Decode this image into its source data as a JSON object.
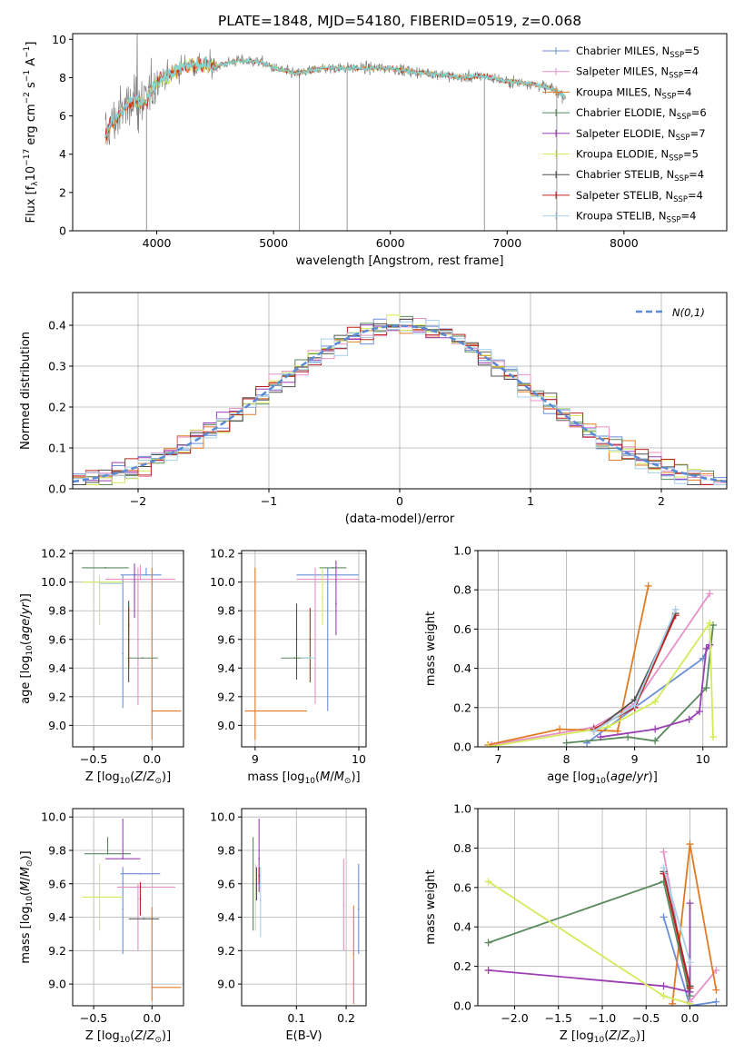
{
  "figure": {
    "title": "PLATE=1848, MJD=54180, FIBERID=0519, z=0.068"
  },
  "models": [
    {
      "name": "Chabrier MILES, N",
      "nssp": "=5",
      "color": "#6a8fd8"
    },
    {
      "name": "Salpeter MILES, N",
      "nssp": "=4",
      "color": "#e890c8"
    },
    {
      "name": "Kroupa MILES, N",
      "nssp": "=4",
      "color": "#e07b24"
    },
    {
      "name": "Chabrier ELODIE, N",
      "nssp": "=6",
      "color": "#5a8a5e"
    },
    {
      "name": "Salpeter ELODIE, N",
      "nssp": "=7",
      "color": "#9b3fb5"
    },
    {
      "name": "Kroupa ELODIE, N",
      "nssp": "=5",
      "color": "#d4ea5a"
    },
    {
      "name": "Chabrier STELIB, N",
      "nssp": "=4",
      "color": "#505050"
    },
    {
      "name": "Salpeter STELIB, N",
      "nssp": "=4",
      "color": "#c0231e"
    },
    {
      "name": "Kroupa STELIB, N",
      "nssp": "=4",
      "color": "#a8d0e8"
    }
  ],
  "chart_data": [
    {
      "id": "spectrum",
      "type": "line",
      "title": "PLATE=1848, MJD=54180, FIBERID=0519, z=0.068",
      "xlabel": "wavelength [Angstrom, rest frame]",
      "ylabel": "Flux [f_λ 10^-17 erg cm^-2 s^-1 A^-1]",
      "xlim": [
        3280,
        8880
      ],
      "ylim": [
        0,
        10.3
      ],
      "xticks": [
        4000,
        5000,
        6000,
        7000,
        8000
      ],
      "yticks": [
        0,
        2,
        4,
        6,
        8,
        10
      ],
      "data_color": "#7f7f7f",
      "model_color": "#7fdde0",
      "continuum": {
        "x": [
          3560,
          3600,
          3700,
          3800,
          3900,
          3950,
          4000,
          4100,
          4200,
          4300,
          4400,
          4500,
          4700,
          4900,
          5000,
          5200,
          5400,
          5600,
          5800,
          6000,
          6200,
          6400,
          6600,
          6800,
          7000,
          7200,
          7400,
          7500
        ],
        "y": [
          4.9,
          5.5,
          6.2,
          6.9,
          6.6,
          7.3,
          7.8,
          8.1,
          8.5,
          8.7,
          8.6,
          8.6,
          8.9,
          8.8,
          8.5,
          8.2,
          8.5,
          8.5,
          8.5,
          8.5,
          8.3,
          8.2,
          8.0,
          8.1,
          7.8,
          7.7,
          7.4,
          7.0
        ]
      },
      "spikes": [
        {
          "x": 3912,
          "y": 0
        },
        {
          "x": 5222,
          "y": 0
        },
        {
          "x": 5630,
          "y": 0
        },
        {
          "x": 6805,
          "y": 0
        },
        {
          "x": 7425,
          "y": 0
        }
      ]
    },
    {
      "id": "residuals",
      "type": "line",
      "xlabel": "(data-model)/error",
      "ylabel": "Normed distribution",
      "xlim": [
        -2.5,
        2.5
      ],
      "ylim": [
        0,
        0.48
      ],
      "xticks": [
        -2,
        -1,
        0,
        1,
        2
      ],
      "yticks": [
        0.0,
        0.1,
        0.2,
        0.3,
        0.4
      ],
      "gaussian_label": "N(0,1)",
      "gaussian_color": "#5b8ad6",
      "bin_width": 0.1,
      "bins_start": -2.5
    },
    {
      "id": "age_vs_Z",
      "type": "scatter",
      "xlabel": "Z [log10(Z/Z⊙)]",
      "ylabel": "age [log10(age/yr)]",
      "xlim": [
        -0.68,
        0.27
      ],
      "ylim": [
        8.85,
        10.22
      ],
      "xticks": [
        -0.5,
        0.0
      ],
      "yticks": [
        9.0,
        9.2,
        9.4,
        9.6,
        9.8,
        10.0,
        10.2
      ],
      "points": [
        {
          "model": 0,
          "x": -0.05,
          "y": 10.05,
          "xerr": [
            0.22,
            0.13
          ],
          "yerr": [
            0.0,
            0.05
          ]
        },
        {
          "model": 0,
          "x": -0.25,
          "y": 9.5,
          "xerr": [
            0.0,
            0.0
          ],
          "yerr": [
            0.38,
            0.55
          ]
        },
        {
          "model": 1,
          "x": -0.1,
          "y": 10.02,
          "xerr": [
            0.3,
            0.3
          ],
          "yerr": [
            0.0,
            0.1
          ]
        },
        {
          "model": 1,
          "x": -0.12,
          "y": 9.6,
          "xerr": [
            0.0,
            0.0
          ],
          "yerr": [
            0.46,
            0.5
          ]
        },
        {
          "model": 2,
          "x": 0.0,
          "y": 9.1,
          "xerr": [
            0.0,
            0.25
          ],
          "yerr": [
            0.2,
            1.0
          ]
        },
        {
          "model": 3,
          "x": -0.4,
          "y": 10.1,
          "xerr": [
            0.2,
            0.2
          ],
          "yerr": [
            0.0,
            0.0
          ]
        },
        {
          "model": 3,
          "x": -0.08,
          "y": 9.47,
          "xerr": [
            0.13,
            0.13
          ],
          "yerr": [
            0.0,
            0.0
          ]
        },
        {
          "model": 4,
          "x": -0.15,
          "y": 10.05,
          "xerr": [
            0.0,
            0.0
          ],
          "yerr": [
            0.3,
            0.08
          ]
        },
        {
          "model": 5,
          "x": -0.45,
          "y": 10.0,
          "xerr": [
            0.15,
            0.2
          ],
          "yerr": [
            0.3,
            0.05
          ]
        },
        {
          "model": 6,
          "x": -0.2,
          "y": 9.6,
          "xerr": [
            0.0,
            0.0
          ],
          "yerr": [
            0.3,
            0.27
          ]
        },
        {
          "model": 7,
          "x": -0.2,
          "y": 9.7,
          "xerr": [
            0.0,
            0.0
          ],
          "yerr": [
            0.3,
            0.13
          ]
        },
        {
          "model": 8,
          "x": -0.35,
          "y": 9.99,
          "xerr": [
            0.1,
            0.1
          ],
          "yerr": [
            0.0,
            0.0
          ]
        }
      ]
    },
    {
      "id": "age_vs_mass",
      "type": "scatter",
      "xlabel": "mass [log10(M/M⊙)]",
      "ylabel": "",
      "xlim": [
        8.87,
        10.07
      ],
      "ylim": [
        8.85,
        10.22
      ],
      "xticks": [
        9,
        10
      ],
      "yticks": [
        9.0,
        9.2,
        9.4,
        9.6,
        9.8,
        10.0,
        10.2
      ],
      "points": [
        {
          "model": 0,
          "x": 9.7,
          "y": 10.05,
          "xerr": [
            0.3,
            0.3
          ],
          "yerr": [
            0.0,
            0.0
          ]
        },
        {
          "model": 0,
          "x": 9.7,
          "y": 9.6,
          "xerr": [
            0.0,
            0.0
          ],
          "yerr": [
            0.5,
            0.5
          ]
        },
        {
          "model": 1,
          "x": 9.58,
          "y": 9.6,
          "xerr": [
            0.0,
            0.0
          ],
          "yerr": [
            0.45,
            0.5
          ]
        },
        {
          "model": 1,
          "x": 9.7,
          "y": 10.02,
          "xerr": [
            0.3,
            0.3
          ],
          "yerr": [
            0.0,
            0.0
          ]
        },
        {
          "model": 2,
          "x": 9.0,
          "y": 9.1,
          "xerr": [
            0.1,
            0.5
          ],
          "yerr": [
            0.2,
            1.0
          ]
        },
        {
          "model": 3,
          "x": 9.38,
          "y": 9.47,
          "xerr": [
            0.13,
            0.13
          ],
          "yerr": [
            0.0,
            0.0
          ]
        },
        {
          "model": 3,
          "x": 9.75,
          "y": 10.1,
          "xerr": [
            0.13,
            0.13
          ],
          "yerr": [
            0.0,
            0.0
          ]
        },
        {
          "model": 4,
          "x": 9.78,
          "y": 9.85,
          "xerr": [
            0.0,
            0.0
          ],
          "yerr": [
            0.22,
            0.3
          ]
        },
        {
          "model": 5,
          "x": 9.65,
          "y": 9.9,
          "xerr": [
            0.0,
            0.0
          ],
          "yerr": [
            0.2,
            0.2
          ]
        },
        {
          "model": 6,
          "x": 9.4,
          "y": 9.6,
          "xerr": [
            0.0,
            0.0
          ],
          "yerr": [
            0.28,
            0.25
          ]
        },
        {
          "model": 7,
          "x": 9.53,
          "y": 9.6,
          "xerr": [
            0.0,
            0.0
          ],
          "yerr": [
            0.3,
            0.22
          ]
        },
        {
          "model": 8,
          "x": 9.45,
          "y": 9.47,
          "xerr": [
            0.0,
            0.13
          ],
          "yerr": [
            0.0,
            0.0
          ]
        }
      ]
    },
    {
      "id": "weight_vs_age",
      "type": "line",
      "xlabel": "age [log10(age/yr)]",
      "ylabel": "mass weight",
      "xlim": [
        6.7,
        10.35
      ],
      "ylim": [
        0,
        1.0
      ],
      "xticks": [
        7,
        8,
        9,
        10
      ],
      "yticks": [
        0.0,
        0.2,
        0.4,
        0.6,
        0.8,
        1.0
      ],
      "series": [
        {
          "model": 0,
          "x": [
            8.3,
            9.0,
            10.0,
            10.1
          ],
          "y": [
            0.02,
            0.2,
            0.45,
            0.52
          ]
        },
        {
          "model": 1,
          "x": [
            6.9,
            8.4,
            9.0,
            10.1
          ],
          "y": [
            0.01,
            0.1,
            0.22,
            0.78
          ]
        },
        {
          "model": 2,
          "x": [
            6.85,
            7.9,
            8.75,
            9.2
          ],
          "y": [
            0.01,
            0.09,
            0.08,
            0.82
          ]
        },
        {
          "model": 3,
          "x": [
            8.0,
            8.9,
            9.3,
            10.05,
            10.15
          ],
          "y": [
            0.02,
            0.05,
            0.03,
            0.3,
            0.62
          ]
        },
        {
          "model": 4,
          "x": [
            8.5,
            9.3,
            9.8,
            9.95,
            10.05,
            10.1
          ],
          "y": [
            0.05,
            0.09,
            0.14,
            0.18,
            0.5,
            0.52
          ]
        },
        {
          "model": 5,
          "x": [
            6.85,
            8.6,
            9.3,
            10.1,
            10.15
          ],
          "y": [
            0.0,
            0.1,
            0.23,
            0.63,
            0.05
          ]
        },
        {
          "model": 6,
          "x": [
            8.4,
            9.0,
            9.6
          ],
          "y": [
            0.08,
            0.24,
            0.68
          ]
        },
        {
          "model": 7,
          "x": [
            8.4,
            9.0,
            9.6
          ],
          "y": [
            0.09,
            0.2,
            0.67
          ]
        },
        {
          "model": 8,
          "x": [
            8.4,
            9.0,
            9.6
          ],
          "y": [
            0.08,
            0.21,
            0.7
          ]
        }
      ]
    },
    {
      "id": "mass_vs_Z",
      "type": "scatter",
      "xlabel": "Z [log10(Z/Z⊙)]",
      "ylabel": "mass [log10(M/M⊙)]",
      "xlim": [
        -0.68,
        0.27
      ],
      "ylim": [
        8.87,
        10.05
      ],
      "xticks": [
        -0.5,
        0.0
      ],
      "yticks": [
        9.0,
        9.2,
        9.4,
        9.6,
        9.8,
        10.0
      ],
      "points": [
        {
          "model": 0,
          "x": -0.25,
          "y": 9.45,
          "xerr": [
            0.0,
            0.0
          ],
          "yerr": [
            0.27,
            0.25
          ]
        },
        {
          "model": 0,
          "x": -0.1,
          "y": 9.66,
          "xerr": [
            0.17,
            0.17
          ],
          "yerr": [
            0.0,
            0.0
          ]
        },
        {
          "model": 1,
          "x": -0.1,
          "y": 9.58,
          "xerr": [
            0.2,
            0.3
          ],
          "yerr": [
            0.0,
            0.0
          ]
        },
        {
          "model": 1,
          "x": -0.12,
          "y": 9.4,
          "xerr": [
            0.0,
            0.0
          ],
          "yerr": [
            0.2,
            0.2
          ]
        },
        {
          "model": 2,
          "x": 0.0,
          "y": 8.98,
          "xerr": [
            0.0,
            0.25
          ],
          "yerr": [
            0.08,
            0.48
          ]
        },
        {
          "model": 3,
          "x": -0.38,
          "y": 9.78,
          "xerr": [
            0.2,
            0.2
          ],
          "yerr": [
            0.0,
            0.1
          ]
        },
        {
          "model": 4,
          "x": -0.25,
          "y": 9.75,
          "xerr": [
            0.15,
            0.15
          ],
          "yerr": [
            0.0,
            0.24
          ]
        },
        {
          "model": 5,
          "x": -0.45,
          "y": 9.52,
          "xerr": [
            0.15,
            0.2
          ],
          "yerr": [
            0.2,
            0.2
          ]
        },
        {
          "model": 6,
          "x": -0.07,
          "y": 9.39,
          "xerr": [
            0.13,
            0.13
          ],
          "yerr": [
            0.0,
            0.0
          ]
        },
        {
          "model": 7,
          "x": -0.1,
          "y": 9.51,
          "xerr": [
            0.0,
            0.0
          ],
          "yerr": [
            0.1,
            0.1
          ]
        },
        {
          "model": 8,
          "x": -0.07,
          "y": 9.4,
          "xerr": [
            0.0,
            0.0
          ],
          "yerr": [
            0.0,
            0.0
          ]
        }
      ]
    },
    {
      "id": "mass_vs_EBV",
      "type": "scatter",
      "xlabel": "E(B-V)",
      "ylabel": "",
      "xlim": [
        -0.01,
        0.24
      ],
      "ylim": [
        8.87,
        10.05
      ],
      "xticks": [
        0.1,
        0.2
      ],
      "yticks": [
        9.0,
        9.2,
        9.4,
        9.6,
        9.8,
        10.0
      ],
      "points": [
        {
          "model": 0,
          "x": 0.225,
          "y": 9.45,
          "xerr": [
            0.0,
            0.0
          ],
          "yerr": [
            0.27,
            0.27
          ]
        },
        {
          "model": 1,
          "x": 0.195,
          "y": 9.47,
          "xerr": [
            0.0,
            0.0
          ],
          "yerr": [
            0.27,
            0.28
          ]
        },
        {
          "model": 2,
          "x": 0.215,
          "y": 9.18,
          "xerr": [
            0.0,
            0.0
          ],
          "yerr": [
            0.3,
            0.29
          ]
        },
        {
          "model": 3,
          "x": 0.013,
          "y": 9.6,
          "xerr": [
            0.0,
            0.0
          ],
          "yerr": [
            0.28,
            0.28
          ]
        },
        {
          "model": 4,
          "x": 0.025,
          "y": 9.75,
          "xerr": [
            0.0,
            0.0
          ],
          "yerr": [
            0.2,
            0.24
          ]
        },
        {
          "model": 5,
          "x": 0.018,
          "y": 9.52,
          "xerr": [
            0.0,
            0.0
          ],
          "yerr": [
            0.2,
            0.2
          ]
        },
        {
          "model": 6,
          "x": 0.02,
          "y": 9.6,
          "xerr": [
            0.0,
            0.0
          ],
          "yerr": [
            0.1,
            0.1
          ]
        },
        {
          "model": 7,
          "x": 0.025,
          "y": 9.65,
          "xerr": [
            0.0,
            0.0
          ],
          "yerr": [
            0.05,
            0.05
          ]
        },
        {
          "model": 8,
          "x": 0.028,
          "y": 9.5,
          "xerr": [
            0.0,
            0.0
          ],
          "yerr": [
            0.22,
            0.2
          ]
        }
      ]
    },
    {
      "id": "weight_vs_Z",
      "type": "line",
      "xlabel": "Z [log10(Z/Z⊙)]",
      "ylabel": "mass weight",
      "xlim": [
        -2.42,
        0.42
      ],
      "ylim": [
        0,
        1.0
      ],
      "xticks": [
        -2.0,
        -1.5,
        -1.0,
        -0.5,
        0.0
      ],
      "yticks": [
        0.0,
        0.2,
        0.4,
        0.6,
        0.8,
        1.0
      ],
      "series": [
        {
          "model": 0,
          "x": [
            -0.3,
            0.0,
            0.3
          ],
          "y": [
            0.45,
            0.0,
            0.02
          ]
        },
        {
          "model": 1,
          "x": [
            -0.3,
            0.0,
            0.3
          ],
          "y": [
            0.78,
            0.02,
            0.18
          ]
        },
        {
          "model": 2,
          "x": [
            -0.2,
            0.0,
            0.3
          ],
          "y": [
            0.01,
            0.82,
            0.08
          ]
        },
        {
          "model": 3,
          "x": [
            -2.3,
            -0.3,
            0.0
          ],
          "y": [
            0.32,
            0.63,
            0.05
          ]
        },
        {
          "model": 4,
          "x": [
            -2.3,
            -0.3,
            0.0,
            0.0
          ],
          "y": [
            0.18,
            0.1,
            0.07,
            0.52
          ]
        },
        {
          "model": 5,
          "x": [
            -2.3,
            -0.3,
            0.0
          ],
          "y": [
            0.63,
            0.05,
            0.01
          ]
        },
        {
          "model": 6,
          "x": [
            -0.3,
            0.0
          ],
          "y": [
            0.68,
            0.1
          ]
        },
        {
          "model": 7,
          "x": [
            -0.3,
            0.0
          ],
          "y": [
            0.67,
            0.09
          ]
        },
        {
          "model": 8,
          "x": [
            -0.3,
            0.0
          ],
          "y": [
            0.7,
            0.22
          ]
        }
      ]
    }
  ]
}
